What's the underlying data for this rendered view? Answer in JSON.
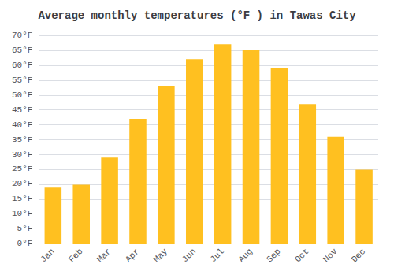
{
  "chart_data": {
    "type": "bar",
    "title": "Average monthly temperatures (°F ) in Tawas City",
    "categories": [
      "Jan",
      "Feb",
      "Mar",
      "Apr",
      "May",
      "Jun",
      "Jul",
      "Aug",
      "Sep",
      "Oct",
      "Nov",
      "Dec"
    ],
    "values": [
      19,
      20,
      29,
      42,
      53,
      62,
      67,
      65,
      59,
      47,
      36,
      25
    ],
    "color": "#FFC020",
    "ylim": [
      0,
      70
    ],
    "yticks": [
      {
        "value": 0,
        "label": "0°F"
      },
      {
        "value": 5,
        "label": "5°F"
      },
      {
        "value": 10,
        "label": "10°F"
      },
      {
        "value": 15,
        "label": "15°F"
      },
      {
        "value": 20,
        "label": "20°F"
      },
      {
        "value": 25,
        "label": "25°F"
      },
      {
        "value": 30,
        "label": "30°F"
      },
      {
        "value": 35,
        "label": "35°F"
      },
      {
        "value": 40,
        "label": "40°F"
      },
      {
        "value": 45,
        "label": "45°F"
      },
      {
        "value": 50,
        "label": "50°F"
      },
      {
        "value": 55,
        "label": "55°F"
      },
      {
        "value": 60,
        "label": "60°F"
      },
      {
        "value": 65,
        "label": "65°F"
      },
      {
        "value": 70,
        "label": "70°F"
      }
    ],
    "grid": true
  }
}
